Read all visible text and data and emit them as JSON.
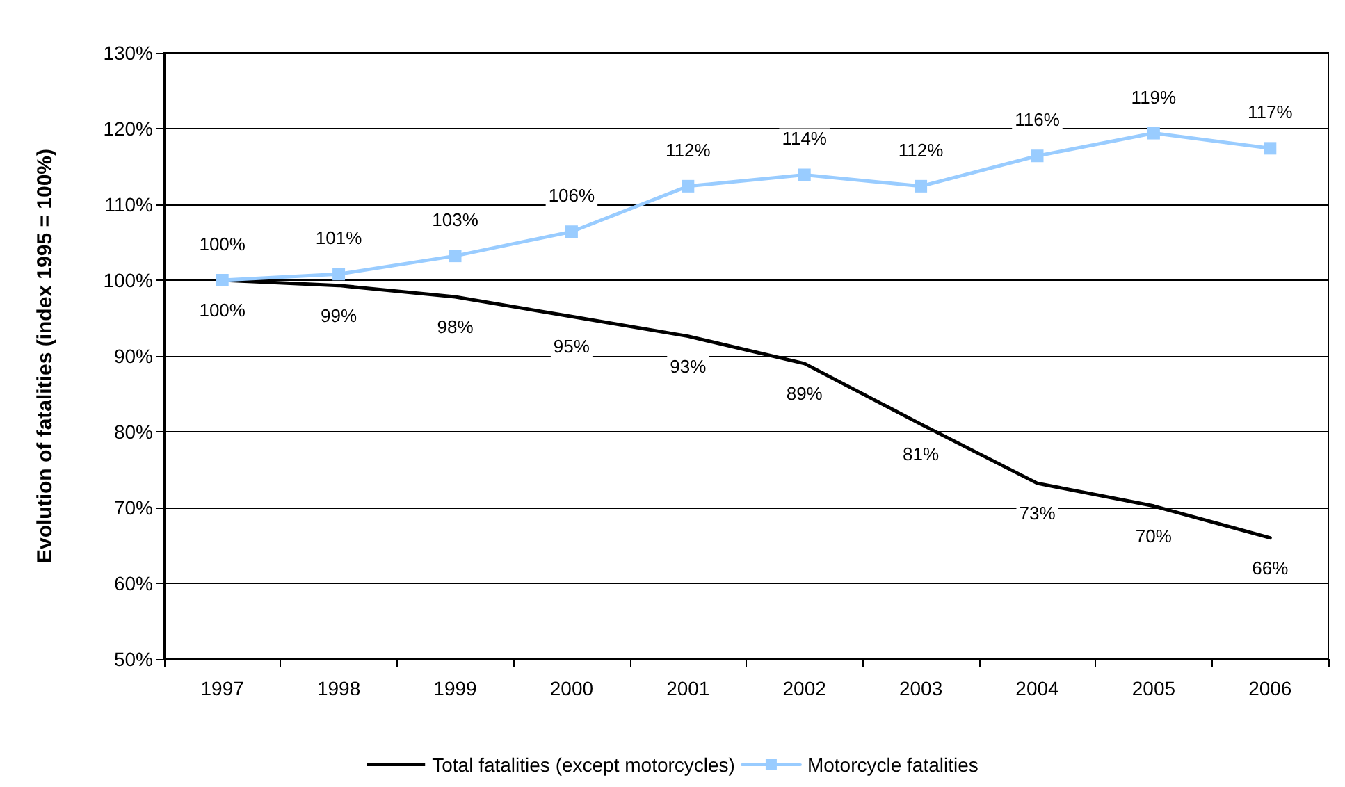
{
  "chart_data": {
    "type": "line",
    "ylabel": "Evolution of fatalities (index 1995 = 100%)",
    "categories": [
      "1997",
      "1998",
      "1999",
      "2000",
      "2001",
      "2002",
      "2003",
      "2004",
      "2005",
      "2006"
    ],
    "series": [
      {
        "name": "Total fatalities (except motorcycles)",
        "color": "#000000",
        "marker": "none",
        "values": [
          100,
          99.3,
          97.8,
          95.2,
          92.6,
          89,
          81,
          73.2,
          70.2,
          66
        ],
        "value_labels": [
          "100%",
          "99%",
          "98%",
          "95%",
          "93%",
          "89%",
          "81%",
          "73%",
          "70%",
          "66%"
        ]
      },
      {
        "name": "Motorcycle fatalities",
        "color": "#99ccff",
        "marker": "square",
        "values": [
          100,
          100.8,
          103.2,
          106.4,
          112.4,
          113.9,
          112.4,
          116.4,
          119.4,
          117.4
        ],
        "value_labels": [
          "100%",
          "101%",
          "103%",
          "106%",
          "112%",
          "114%",
          "112%",
          "116%",
          "119%",
          "117%"
        ]
      }
    ],
    "ylim": [
      50,
      130
    ],
    "yticks": [
      {
        "value": 50,
        "label": "50%"
      },
      {
        "value": 60,
        "label": "60%"
      },
      {
        "value": 70,
        "label": "70%"
      },
      {
        "value": 80,
        "label": "80%"
      },
      {
        "value": 90,
        "label": "90%"
      },
      {
        "value": 100,
        "label": "100%"
      },
      {
        "value": 110,
        "label": "110%"
      },
      {
        "value": 120,
        "label": "120%"
      },
      {
        "value": 130,
        "label": "130%"
      }
    ],
    "grid": "y",
    "legend": "bottom",
    "line_style": "solid"
  }
}
